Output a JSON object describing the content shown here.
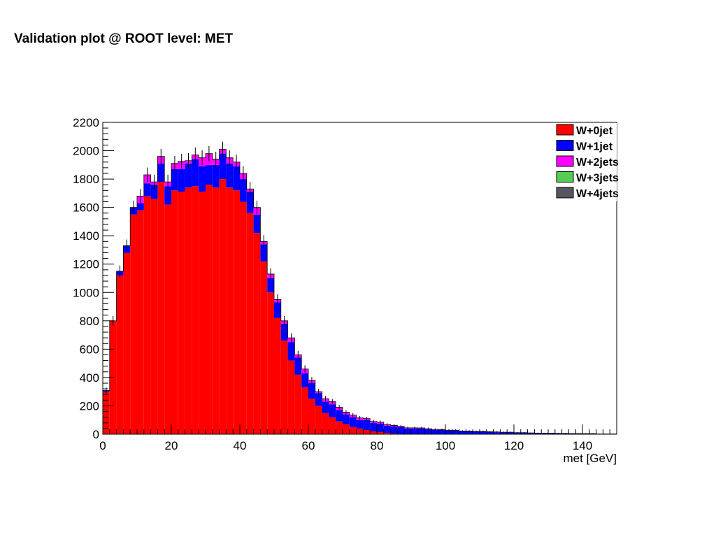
{
  "slide": {
    "title": "Validation plot @ ROOT level: MET"
  },
  "chart_data": {
    "type": "bar",
    "stacked": true,
    "histogram": true,
    "title": "",
    "xlabel": "met [GeV]",
    "ylabel": "",
    "xlim": [
      0,
      150
    ],
    "ylim": [
      0,
      2200
    ],
    "grid": false,
    "legend_position": "top-right",
    "x_ticks": [
      0,
      20,
      40,
      60,
      80,
      100,
      120,
      140
    ],
    "y_ticks": [
      0,
      200,
      400,
      600,
      800,
      1000,
      1200,
      1400,
      1600,
      1800,
      2000,
      2200
    ],
    "bin_width": 2,
    "x": [
      1,
      3,
      5,
      7,
      9,
      11,
      13,
      15,
      17,
      19,
      21,
      23,
      25,
      27,
      29,
      31,
      33,
      35,
      37,
      39,
      41,
      43,
      45,
      47,
      49,
      51,
      53,
      55,
      57,
      59,
      61,
      63,
      65,
      67,
      69,
      71,
      73,
      75,
      77,
      79,
      81,
      83,
      85,
      87,
      89,
      91,
      93,
      95,
      97,
      99,
      101,
      103,
      105,
      107,
      109,
      111,
      113,
      115,
      117,
      119,
      121,
      123,
      125,
      127,
      129,
      131,
      133,
      135,
      137,
      139,
      141,
      143,
      145,
      147,
      149
    ],
    "series": [
      {
        "name": "W+0jet",
        "color": "#ff0000",
        "values": [
          300,
          800,
          1120,
          1280,
          1550,
          1580,
          1680,
          1660,
          1780,
          1620,
          1720,
          1710,
          1740,
          1750,
          1710,
          1760,
          1740,
          1800,
          1740,
          1720,
          1640,
          1560,
          1420,
          1220,
          1000,
          820,
          660,
          520,
          420,
          330,
          250,
          200,
          150,
          120,
          90,
          70,
          50,
          40,
          30,
          20,
          15,
          10,
          5,
          0,
          0,
          0,
          0,
          0,
          0,
          0,
          0,
          0,
          0,
          0,
          0,
          0,
          0,
          0,
          0,
          0,
          0,
          0,
          0,
          0,
          0,
          0,
          0,
          0,
          0,
          0,
          0,
          0,
          0,
          0,
          0
        ]
      },
      {
        "name": "W+1jet",
        "color": "#0000ff",
        "values": [
          8,
          0,
          30,
          50,
          50,
          50,
          90,
          100,
          130,
          130,
          150,
          160,
          170,
          190,
          180,
          140,
          160,
          180,
          170,
          170,
          160,
          150,
          130,
          120,
          100,
          110,
          120,
          130,
          120,
          100,
          110,
          90,
          80,
          90,
          80,
          70,
          70,
          60,
          70,
          60,
          60,
          50,
          50,
          50,
          40,
          40,
          40,
          35,
          30,
          30,
          25,
          25,
          20,
          20,
          18,
          18,
          15,
          14,
          12,
          12,
          10,
          10,
          8,
          7,
          6,
          6,
          5,
          5,
          4,
          4,
          3,
          3,
          2,
          2,
          2
        ]
      },
      {
        "name": "W+2jets",
        "color": "#ff00ff",
        "values": [
          0,
          0,
          0,
          0,
          0,
          50,
          60,
          20,
          50,
          30,
          40,
          55,
          20,
          30,
          60,
          80,
          40,
          30,
          40,
          30,
          40,
          20,
          50,
          20,
          30,
          20,
          20,
          30,
          20,
          30,
          20,
          10,
          20,
          20,
          20,
          15,
          15,
          15,
          10,
          10,
          10,
          8,
          7,
          6,
          5,
          5,
          4,
          4,
          4,
          3,
          3,
          3,
          2,
          2,
          2,
          2,
          2,
          2,
          2,
          2,
          1,
          1,
          1,
          1,
          1,
          1,
          1,
          1,
          1,
          1,
          1,
          1,
          0,
          0,
          0
        ]
      },
      {
        "name": "W+3jets",
        "color": "#55cc55",
        "values": [
          0,
          0,
          0,
          0,
          0,
          0,
          0,
          0,
          0,
          0,
          0,
          0,
          0,
          0,
          0,
          0,
          0,
          0,
          0,
          0,
          0,
          0,
          0,
          0,
          0,
          0,
          0,
          0,
          0,
          0,
          0,
          0,
          0,
          0,
          0,
          0,
          0,
          0,
          0,
          0,
          0,
          0,
          0,
          0,
          0,
          0,
          0,
          0,
          0,
          0,
          0,
          0,
          0,
          0,
          0,
          0,
          0,
          0,
          0,
          0,
          0,
          0,
          0,
          0,
          0,
          0,
          0,
          0,
          0,
          0,
          0,
          0,
          0,
          0,
          0
        ]
      },
      {
        "name": "W+4jets",
        "color": "#555560",
        "values": [
          0,
          0,
          0,
          0,
          0,
          0,
          0,
          0,
          0,
          0,
          0,
          0,
          0,
          0,
          0,
          0,
          0,
          0,
          0,
          0,
          0,
          0,
          0,
          0,
          0,
          0,
          0,
          0,
          0,
          0,
          0,
          0,
          0,
          0,
          0,
          0,
          0,
          0,
          0,
          0,
          0,
          0,
          0,
          0,
          0,
          0,
          0,
          0,
          0,
          0,
          0,
          0,
          0,
          0,
          0,
          0,
          0,
          0,
          0,
          0,
          0,
          0,
          0,
          0,
          0,
          0,
          0,
          0,
          0,
          0,
          0,
          0,
          0,
          0,
          0
        ]
      }
    ]
  }
}
